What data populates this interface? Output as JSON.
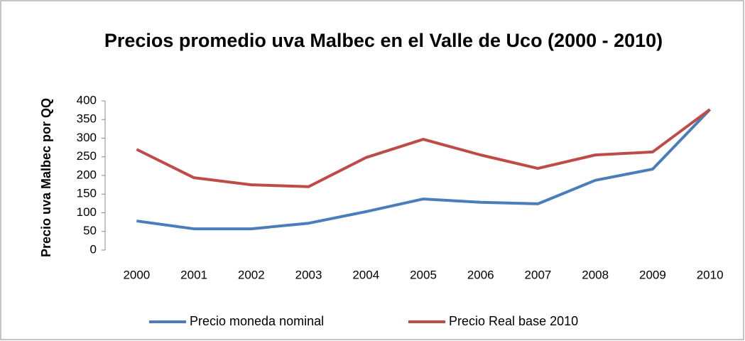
{
  "chart_data": {
    "type": "line",
    "title": "Precios promedio uva Malbec en el Valle de Uco (2000 - 2010)",
    "ylabel": "Precio uva Malbec por QQ",
    "categories": [
      "2000",
      "2001",
      "2002",
      "2003",
      "2004",
      "2005",
      "2006",
      "2007",
      "2008",
      "2009",
      "2010"
    ],
    "series": [
      {
        "name": "Precio moneda nominal",
        "color": "#4a7ebb",
        "values": [
          78,
          57,
          57,
          72,
          103,
          137,
          128,
          124,
          187,
          217,
          377
        ]
      },
      {
        "name": "Precio Real base 2010",
        "color": "#be4b48",
        "values": [
          270,
          194,
          175,
          170,
          248,
          297,
          255,
          219,
          255,
          263,
          377
        ]
      }
    ],
    "ylim": [
      0,
      400
    ],
    "yticks": [
      0,
      50,
      100,
      150,
      200,
      250,
      300,
      350,
      400
    ],
    "grid": false,
    "legend": "bottom"
  }
}
